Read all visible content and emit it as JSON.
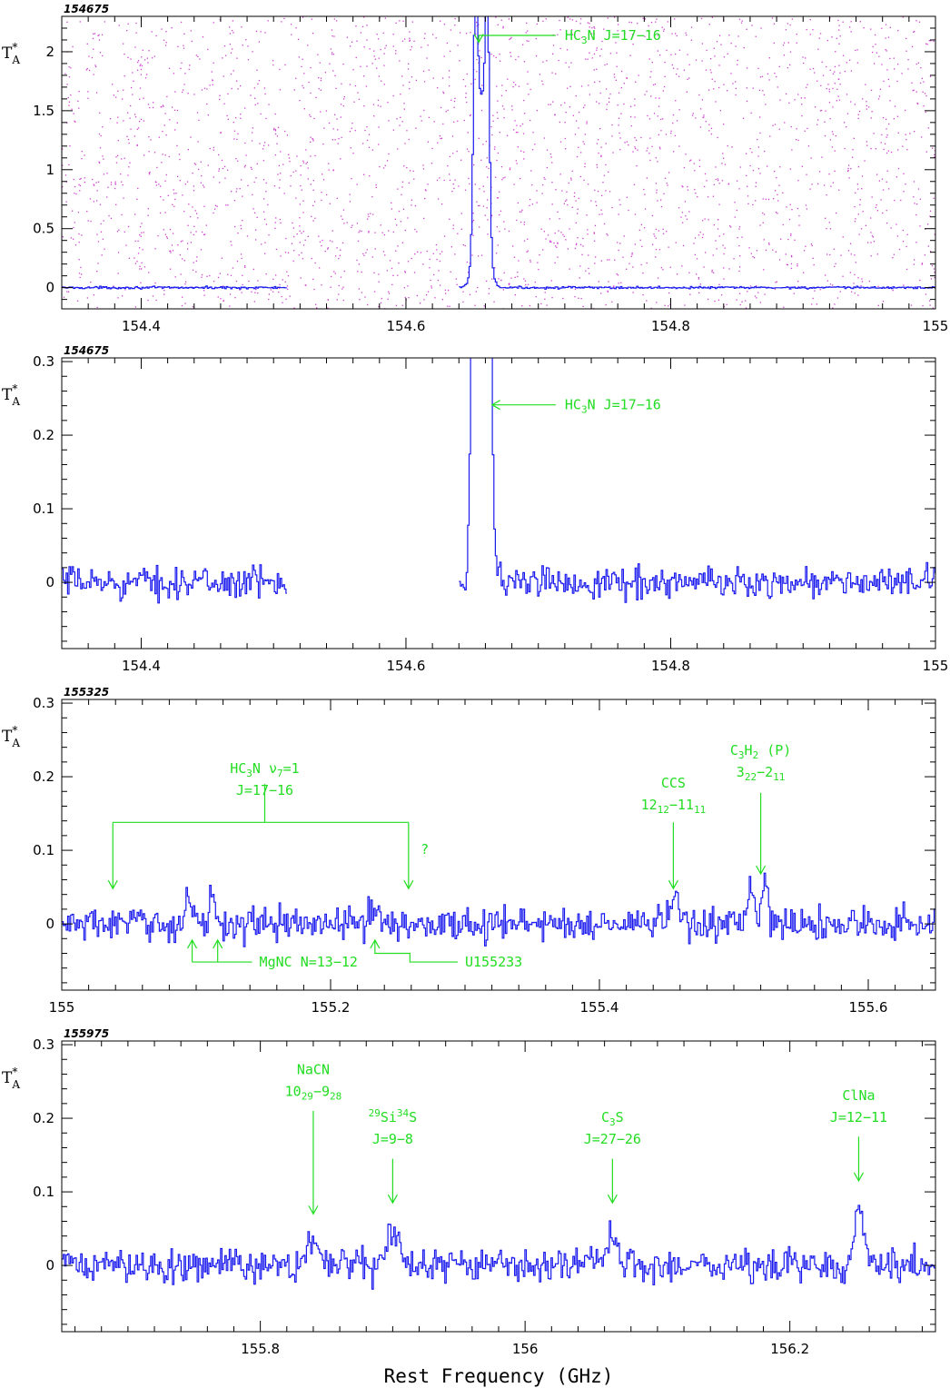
{
  "chart_data": [
    {
      "type": "line",
      "panel_label": "154675",
      "ylabel": "T",
      "ylabel_sup": "*",
      "ylabel_sub": "A",
      "xlim": [
        154.34,
        155.0
      ],
      "ylim": [
        -0.18,
        2.3
      ],
      "xticks": [
        154.4,
        154.6,
        154.8,
        155.0
      ],
      "xtick_labels": [
        "154.4",
        "154.6",
        "154.8",
        "155"
      ],
      "yticks": [
        0,
        0.5,
        1.0,
        1.5,
        2.0
      ],
      "ytick_labels": [
        "0",
        "0.5",
        "1",
        "1.5",
        "2"
      ],
      "noise": 0.006,
      "segments": [
        [
          154.34,
          154.51
        ],
        [
          154.64,
          155.0
        ]
      ],
      "features": [
        {
          "center": 154.652,
          "height": 1.9,
          "width": 0.0015
        },
        {
          "center": 154.661,
          "height": 1.72,
          "width": 0.0015
        },
        {
          "center": 154.6565,
          "height": 1.6,
          "width": 0.004
        }
      ],
      "annotations": [
        {
          "lines": [
            [
              {
                "t": "HC"
              },
              {
                "t": "3",
                "sub": true
              },
              {
                "t": "N J=17−16"
              }
            ]
          ],
          "x": 154.655,
          "y": 2.08,
          "text_x": 154.72,
          "text_y": 2.1,
          "style": "elbow"
        }
      ],
      "scatter_dots": true
    },
    {
      "type": "line",
      "panel_label": "154675",
      "ylabel": "T",
      "ylabel_sup": "*",
      "ylabel_sub": "A",
      "xlim": [
        154.34,
        155.0
      ],
      "ylim": [
        -0.09,
        0.305
      ],
      "xticks": [
        154.4,
        154.6,
        154.8,
        155.0
      ],
      "xtick_labels": [
        "154.4",
        "154.6",
        "154.8",
        "155"
      ],
      "yticks": [
        0,
        0.1,
        0.2,
        0.3
      ],
      "ytick_labels": [
        "0",
        "0.1",
        "0.2",
        "0.3"
      ],
      "noise": 0.013,
      "segments": [
        [
          154.34,
          154.51
        ],
        [
          154.64,
          155.0
        ]
      ],
      "features": [
        {
          "center": 154.652,
          "height": 1.9,
          "width": 0.0015
        },
        {
          "center": 154.661,
          "height": 1.72,
          "width": 0.0015
        },
        {
          "center": 154.6565,
          "height": 1.6,
          "width": 0.004
        }
      ],
      "annotations": [
        {
          "lines": [
            [
              {
                "t": "HC"
              },
              {
                "t": "3",
                "sub": true
              },
              {
                "t": "N J=17−16"
              }
            ]
          ],
          "x": 154.665,
          "y": 0.235,
          "text_x": 154.72,
          "text_y": 0.235,
          "style": "left-arrow"
        }
      ]
    },
    {
      "type": "line",
      "panel_label": "155325",
      "ylabel": "T",
      "ylabel_sup": "*",
      "ylabel_sub": "A",
      "xlim": [
        155.0,
        155.65
      ],
      "ylim": [
        -0.09,
        0.305
      ],
      "xticks": [
        155.0,
        155.2,
        155.4,
        155.6
      ],
      "xtick_labels": [
        "155",
        "155.2",
        "155.4",
        "155.6"
      ],
      "yticks": [
        0,
        0.1,
        0.2,
        0.3
      ],
      "ytick_labels": [
        "0",
        "0.1",
        "0.2",
        "0.3"
      ],
      "noise": 0.014,
      "segments": [
        [
          155.0,
          155.65
        ]
      ],
      "features": [
        {
          "center": 155.095,
          "height": 0.03,
          "width": 0.003
        },
        {
          "center": 155.112,
          "height": 0.045,
          "width": 0.002
        },
        {
          "center": 155.232,
          "height": 0.025,
          "width": 0.003
        },
        {
          "center": 155.455,
          "height": 0.03,
          "width": 0.004
        },
        {
          "center": 155.512,
          "height": 0.05,
          "width": 0.002
        },
        {
          "center": 155.523,
          "height": 0.06,
          "width": 0.002
        }
      ],
      "annotations": [
        {
          "lines": [
            [
              {
                "t": "HC"
              },
              {
                "t": "3",
                "sub": true
              },
              {
                "t": "N ν"
              },
              {
                "t": "7",
                "sub": true
              },
              {
                "t": "=1"
              }
            ],
            [
              {
                "t": "J=17−16"
              }
            ]
          ],
          "text_x": 155.151,
          "text_y": 0.205,
          "style": "bracket",
          "arrows": [
            155.038,
            155.258
          ],
          "bar_y": 0.138,
          "stem_top": 0.19,
          "arrow_y": 0.048
        },
        {
          "lines": [
            [
              {
                "t": "?"
              }
            ]
          ],
          "text_x": 155.27,
          "text_y": 0.095,
          "style": "text"
        },
        {
          "lines": [
            [
              {
                "t": "CCS"
              }
            ],
            [
              {
                "t": "12"
              },
              {
                "t": "12",
                "sub": true
              },
              {
                "t": "−11"
              },
              {
                "t": "11",
                "sub": true
              }
            ]
          ],
          "x": 155.455,
          "text_x": 155.455,
          "text_y": 0.185,
          "style": "down",
          "arrow_top": 0.138,
          "arrow_y": 0.048
        },
        {
          "lines": [
            [
              {
                "t": "C"
              },
              {
                "t": "3",
                "sub": true
              },
              {
                "t": "H"
              },
              {
                "t": "2",
                "sub": true
              },
              {
                "t": " (P)"
              }
            ],
            [
              {
                "t": "3"
              },
              {
                "t": "22",
                "sub": true
              },
              {
                "t": "−2"
              },
              {
                "t": "11",
                "sub": true
              }
            ]
          ],
          "x": 155.52,
          "text_x": 155.52,
          "text_y": 0.23,
          "style": "down",
          "arrow_top": 0.178,
          "arrow_y": 0.068
        },
        {
          "lines": [
            [
              {
                "t": "MgNC N=13−12"
              }
            ]
          ],
          "text_x": 155.147,
          "text_y": -0.058,
          "style": "up-bracket",
          "arrows": [
            155.097,
            155.116
          ],
          "bar_y": -0.058,
          "arrow_top": -0.022,
          "text_anchor": "start"
        },
        {
          "lines": [
            [
              {
                "t": "U155233"
              }
            ]
          ],
          "text_x": 155.3,
          "text_y": -0.058,
          "style": "up-elbow",
          "x": 155.233,
          "mid_x": 155.259,
          "elbow_y": -0.04,
          "arrow_top": -0.022,
          "text_anchor": "start"
        }
      ]
    },
    {
      "type": "line",
      "panel_label": "155975",
      "ylabel": "T",
      "ylabel_sup": "*",
      "ylabel_sub": "A",
      "xlabel": "Rest Frequency (GHz)",
      "xlim": [
        155.65,
        156.31
      ],
      "ylim": [
        -0.09,
        0.305
      ],
      "xticks": [
        155.8,
        156.0,
        156.2
      ],
      "xtick_labels": [
        "155.8",
        "156",
        "156.2"
      ],
      "yticks": [
        0,
        0.1,
        0.2,
        0.3
      ],
      "ytick_labels": [
        "0",
        "0.1",
        "0.2",
        "0.3"
      ],
      "noise": 0.014,
      "segments": [
        [
          155.65,
          156.31
        ]
      ],
      "features": [
        {
          "center": 155.84,
          "height": 0.04,
          "width": 0.004
        },
        {
          "center": 155.9,
          "height": 0.05,
          "width": 0.004
        },
        {
          "center": 156.066,
          "height": 0.04,
          "width": 0.004
        },
        {
          "center": 156.252,
          "height": 0.08,
          "width": 0.004
        }
      ],
      "annotations": [
        {
          "lines": [
            [
              {
                "t": "NaCN"
              }
            ],
            [
              {
                "t": "10"
              },
              {
                "t": "29",
                "sub": true
              },
              {
                "t": "−9"
              },
              {
                "t": "28",
                "sub": true
              }
            ]
          ],
          "x": 155.84,
          "text_x": 155.84,
          "text_y": 0.26,
          "style": "down",
          "arrow_top": 0.21,
          "arrow_y": 0.07
        },
        {
          "lines": [
            [
              {
                "t": "29",
                "sup": true
              },
              {
                "t": "Si"
              },
              {
                "t": "34",
                "sup": true
              },
              {
                "t": "S"
              }
            ],
            [
              {
                "t": "J=9−8"
              }
            ]
          ],
          "x": 155.9,
          "text_x": 155.9,
          "text_y": 0.195,
          "style": "down",
          "arrow_top": 0.145,
          "arrow_y": 0.085
        },
        {
          "lines": [
            [
              {
                "t": "C"
              },
              {
                "t": "3",
                "sub": true
              },
              {
                "t": "S"
              }
            ],
            [
              {
                "t": "J=27−26"
              }
            ]
          ],
          "x": 156.066,
          "text_x": 156.066,
          "text_y": 0.195,
          "style": "down",
          "arrow_top": 0.145,
          "arrow_y": 0.085
        },
        {
          "lines": [
            [
              {
                "t": "ClNa"
              }
            ],
            [
              {
                "t": "J=12−11"
              }
            ]
          ],
          "x": 156.252,
          "text_x": 156.252,
          "text_y": 0.225,
          "style": "down",
          "arrow_top": 0.175,
          "arrow_y": 0.115
        }
      ]
    }
  ]
}
